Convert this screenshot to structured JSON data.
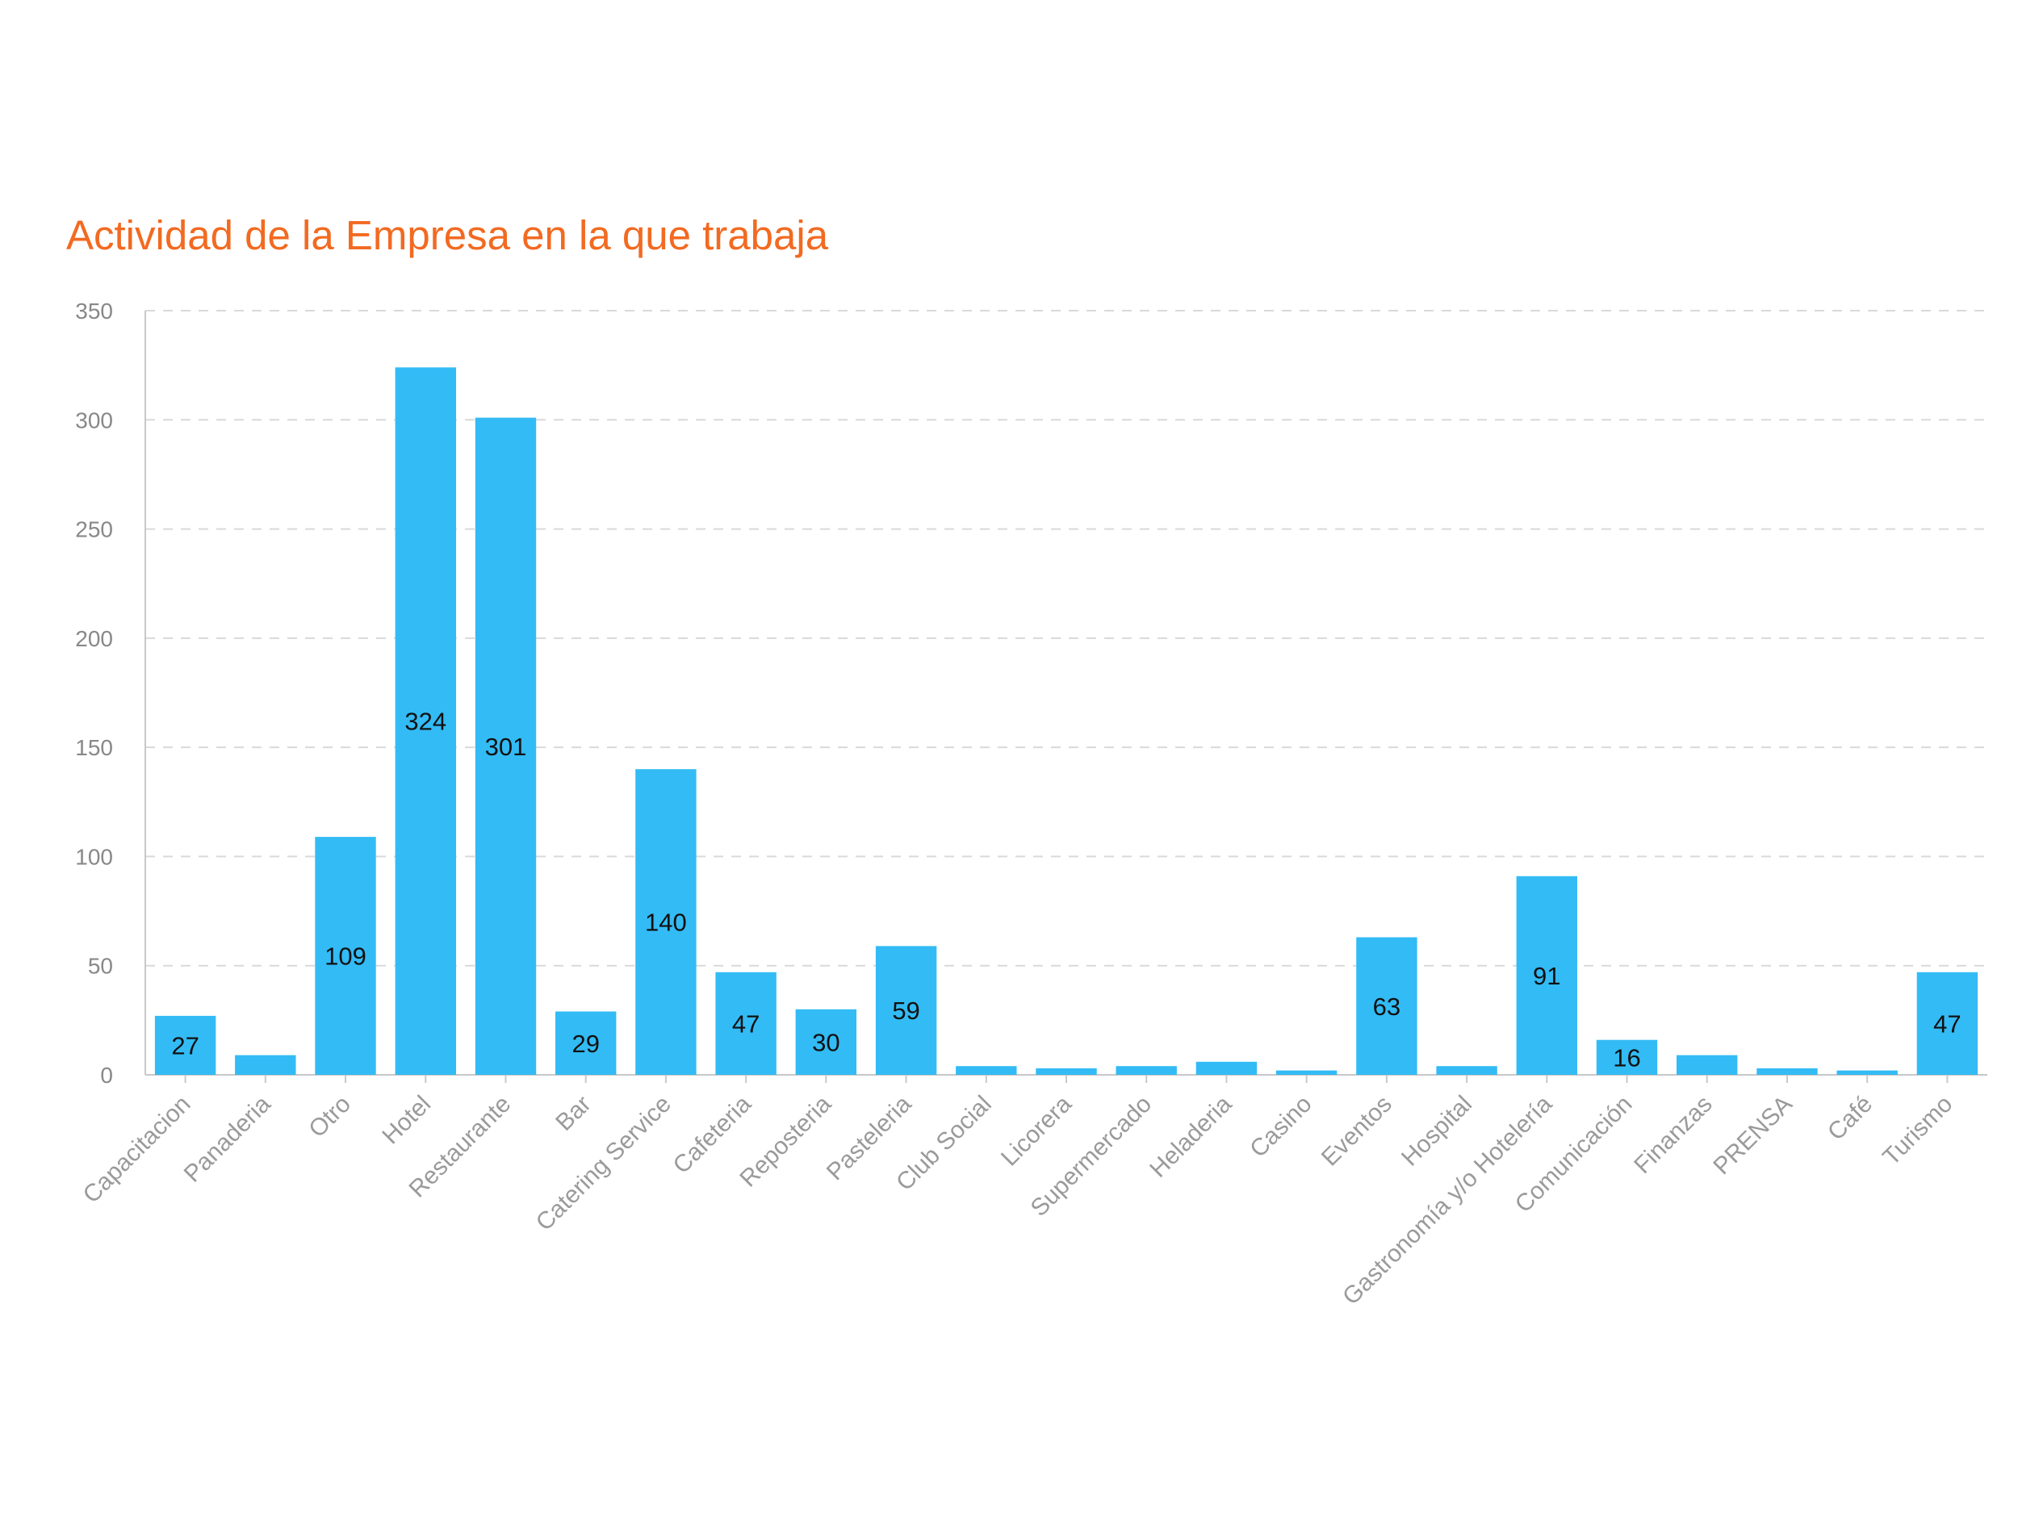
{
  "chart_data": {
    "type": "bar",
    "title": "Actividad de la Empresa en la que trabaja",
    "xlabel": "",
    "ylabel": "",
    "ylim": [
      0,
      350
    ],
    "yticks": [
      0,
      50,
      100,
      150,
      200,
      250,
      300,
      350
    ],
    "grid": true,
    "categories": [
      "Capacitacion",
      "Panaderia",
      "Otro",
      "Hotel",
      "Restaurante",
      "Bar",
      "Catering Service",
      "Cafeteria",
      "Reposteria",
      "Pasteleria",
      "Club Social",
      "Licorera",
      "Supermercado",
      "Heladeria",
      "Casino",
      "Eventos",
      "Hospital",
      "Gastronomía y/o Hotelería",
      "Comunicación",
      "Finanzas",
      "PRENSA",
      "Café",
      "Turismo"
    ],
    "values": [
      27,
      9,
      109,
      324,
      301,
      29,
      140,
      47,
      30,
      59,
      4,
      3,
      4,
      6,
      2,
      63,
      4,
      91,
      16,
      9,
      3,
      2,
      47
    ],
    "data_labels": [
      "27",
      "",
      "109",
      "324",
      "301",
      "29",
      "140",
      "47",
      "30",
      "59",
      "",
      "",
      "",
      "",
      "",
      "63",
      "",
      "91",
      "16",
      "",
      "",
      "",
      "47"
    ],
    "colors": {
      "bar": "#33bbf5",
      "title": "#f26a21",
      "grid": "#d9d9d9"
    }
  }
}
